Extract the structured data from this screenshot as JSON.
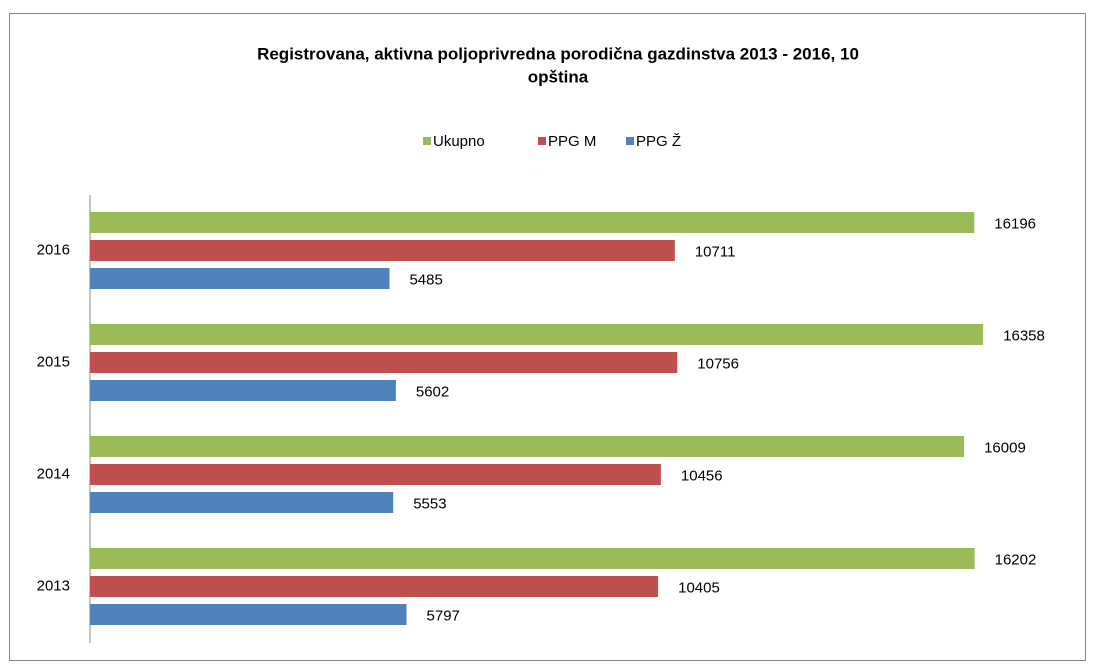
{
  "chart_data": {
    "type": "bar",
    "orientation": "horizontal",
    "title_lines": [
      "Registrovana, aktivna poljoprivredna porodična gazdinstva 2013 - 2016, 10",
      "opština"
    ],
    "categories": [
      "2013",
      "2014",
      "2015",
      "2016"
    ],
    "series": [
      {
        "name": "Ukupno",
        "color": "#9bbb59",
        "values": [
          16202,
          16009,
          16358,
          16196
        ]
      },
      {
        "name": "PPG M",
        "color": "#c0504d",
        "values": [
          10405,
          10456,
          10756,
          10711
        ]
      },
      {
        "name": "PPG Ž",
        "color": "#4f81bd",
        "values": [
          5797,
          5553,
          5602,
          5485
        ]
      }
    ],
    "legend": "top"
  }
}
